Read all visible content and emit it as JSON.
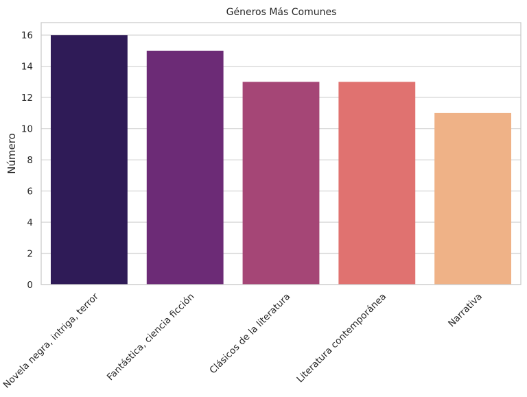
{
  "chart_data": {
    "type": "bar",
    "title": "Géneros Más Comunes",
    "xlabel": "",
    "ylabel": "Número",
    "categories": [
      "Novela negra, intriga, terror",
      "Fantástica, ciencia ficción",
      "Clásicos de la literatura",
      "Literatura contemporánea",
      "Narrativa"
    ],
    "values": [
      16,
      15,
      13,
      13,
      11
    ],
    "colors": [
      "#2f1b57",
      "#6c2b76",
      "#a54676",
      "#e07270",
      "#efb287"
    ],
    "ylim": [
      0,
      16.8
    ],
    "yticks": [
      0,
      2,
      4,
      6,
      8,
      10,
      12,
      14,
      16
    ],
    "grid": "horizontal",
    "style": {
      "grid_color": "#d9d9d9",
      "frame_color": "#cccccc",
      "text_color": "#262626",
      "background": "#ffffff"
    }
  }
}
